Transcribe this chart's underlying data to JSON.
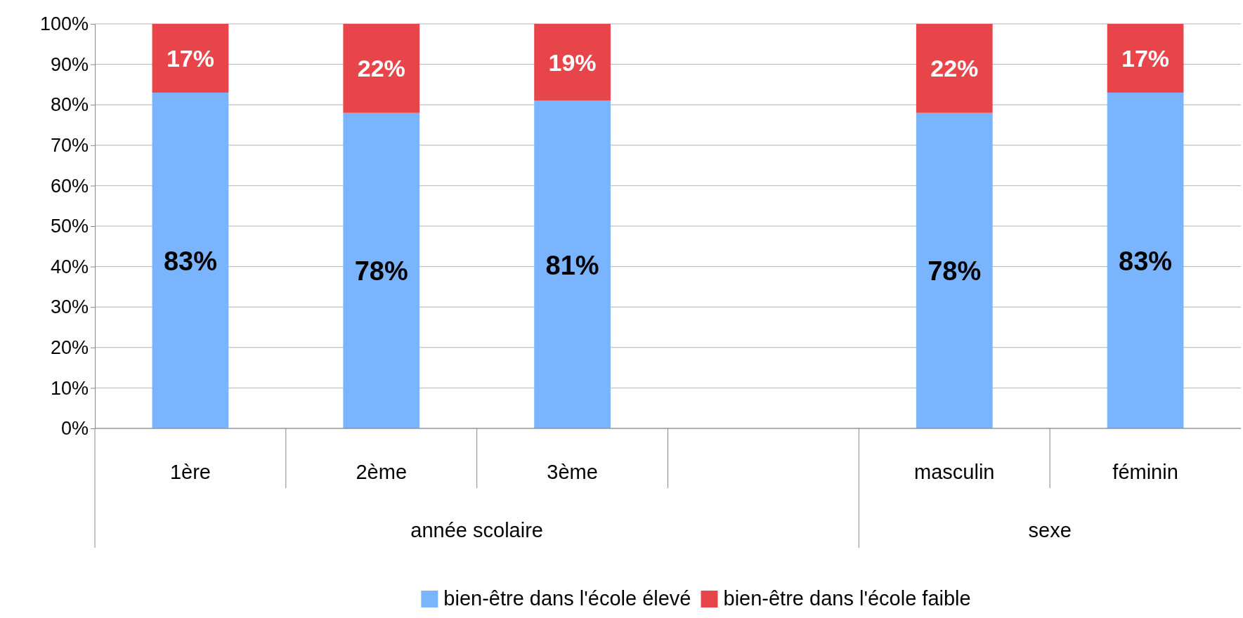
{
  "chart_data": {
    "type": "bar",
    "stacked": true,
    "categories": [
      "1ère",
      "2ème",
      "3ème",
      null,
      "masculin",
      "féminin"
    ],
    "series": [
      {
        "name": "bien-être dans l'école élevé",
        "color": "#7ab4fc",
        "values": [
          83,
          78,
          81,
          null,
          78,
          83
        ],
        "value_labels": [
          "83%",
          "78%",
          "81%",
          null,
          "78%",
          "83%"
        ]
      },
      {
        "name": "bien-être dans l'école faible",
        "color": "#e8454a",
        "values": [
          17,
          22,
          19,
          null,
          22,
          17
        ],
        "value_labels": [
          "17%",
          "22%",
          "19%",
          null,
          "22%",
          "17%"
        ]
      }
    ],
    "ylim": [
      0,
      100
    ],
    "yticks": [
      {
        "value": 0,
        "label": "0%"
      },
      {
        "value": 10,
        "label": "10%"
      },
      {
        "value": 20,
        "label": "20%"
      },
      {
        "value": 30,
        "label": "30%"
      },
      {
        "value": 40,
        "label": "40%"
      },
      {
        "value": 50,
        "label": "50%"
      },
      {
        "value": 60,
        "label": "60%"
      },
      {
        "value": 70,
        "label": "70%"
      },
      {
        "value": 80,
        "label": "80%"
      },
      {
        "value": 90,
        "label": "90%"
      },
      {
        "value": 100,
        "label": "100%"
      }
    ],
    "grid": "y",
    "legend": "bottom",
    "annotations": [
      "année scolaire",
      "sexe"
    ]
  }
}
